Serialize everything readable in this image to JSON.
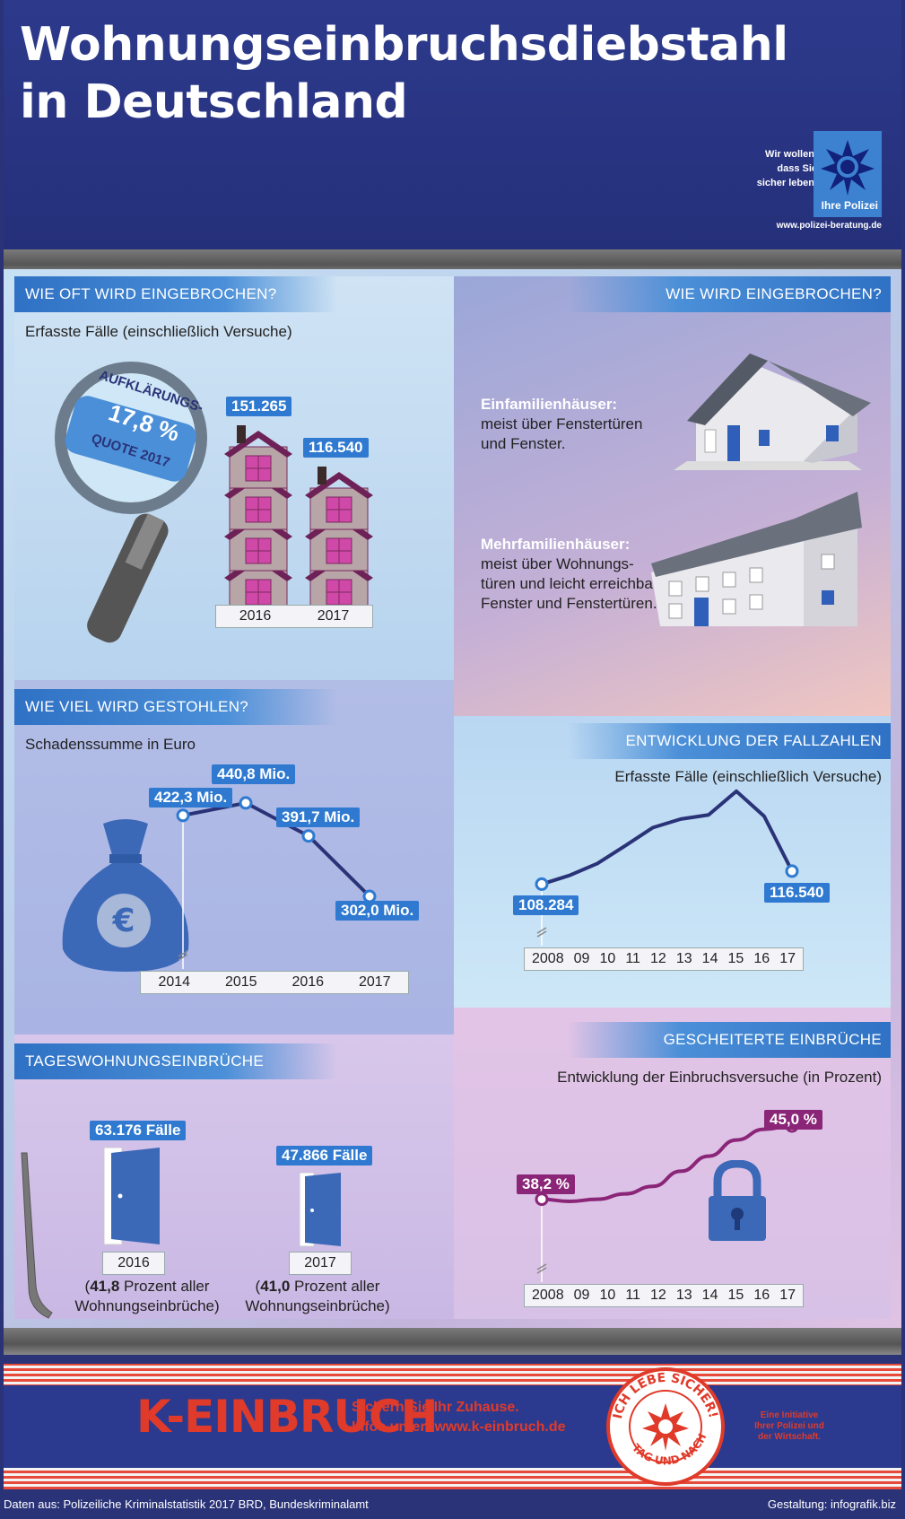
{
  "header": {
    "title_line1": "Wohnungseinbruchsdiebstahl",
    "title_line2": "in Deutschland",
    "police_slogan": [
      "Wir wollen,",
      "dass Sie",
      "sicher leben."
    ],
    "police_name": "Ihre Polizei",
    "police_url": "www.polizei-beratung.de"
  },
  "how_often": {
    "heading": "WIE OFT WIRD EINGEBROCHEN?",
    "subtitle": "Erfasste Fälle (einschließlich Versuche)",
    "magnifier": {
      "line1": "AUFKLÄRUNGS-",
      "line2": "17,8 %",
      "line3": "QUOTE 2017"
    },
    "chart_data": {
      "type": "bar",
      "categories": [
        "2016",
        "2017"
      ],
      "values": [
        151265,
        116540
      ],
      "labels": [
        "151.265",
        "116.540"
      ]
    }
  },
  "how": {
    "heading": "WIE WIRD EINGEBROCHEN?",
    "single_title": "Einfamilienhäuser:",
    "single_lines": [
      "meist über Fenstertüren",
      "und Fenster."
    ],
    "multi_title": "Mehrfamilienhäuser:",
    "multi_lines": [
      "meist über Wohnungs-",
      "türen und leicht erreichbare",
      "Fenster und Fenstertüren."
    ]
  },
  "stolen": {
    "heading": "WIE VIEL WIRD GESTOHLEN?",
    "subtitle": "Schadenssumme in Euro",
    "chart_data": {
      "type": "line",
      "x": [
        "2014",
        "2015",
        "2016",
        "2017"
      ],
      "values": [
        422.3,
        440.8,
        391.7,
        302.0
      ],
      "labels": [
        "422,3 Mio.",
        "440,8 Mio.",
        "391,7 Mio.",
        "302,0 Mio."
      ]
    }
  },
  "development": {
    "heading": "ENTWICKLUNG DER FALLZAHLEN",
    "subtitle": "Erfasste Fälle (einschließlich Versuche)",
    "chart_data": {
      "type": "line",
      "x": [
        "2008",
        "09",
        "10",
        "11",
        "12",
        "13",
        "14",
        "15",
        "16",
        "17"
      ],
      "values": [
        108284,
        113800,
        121347,
        132595,
        144117,
        149500,
        152123,
        167136,
        151265,
        116540
      ],
      "start_label": "108.284",
      "end_label": "116.540"
    }
  },
  "daytime": {
    "heading": "TAGESWOHNUNGSEINBRÜCHE",
    "items": [
      {
        "label": "63.176 Fälle",
        "year": "2016",
        "pct": "41,8",
        "text": "Prozent aller",
        "text2": "Wohnungseinbrüche)"
      },
      {
        "label": "47.866 Fälle",
        "year": "2017",
        "pct": "41,0",
        "text": "Prozent aller",
        "text2": "Wohnungseinbrüche)"
      }
    ]
  },
  "failed": {
    "heading": "GESCHEITERTE EINBRÜCHE",
    "subtitle": "Entwicklung der Einbruchsversuche (in Prozent)",
    "chart_data": {
      "type": "line",
      "x": [
        "2008",
        "09",
        "10",
        "11",
        "12",
        "13",
        "14",
        "15",
        "16",
        "17"
      ],
      "values": [
        38.2,
        38.0,
        38.2,
        38.7,
        39.4,
        40.8,
        42.2,
        43.7,
        44.7,
        45.0
      ],
      "start_label": "38,2 %",
      "end_label": "45,0 %"
    }
  },
  "footer": {
    "brand": "K-EINBRUCH",
    "line1": "Sichern Sie Ihr Zuhause.",
    "line2": "Infos unter: www.k-einbruch.de",
    "seal_top": "ICH LEBE SICHER!",
    "seal_bottom": "TAG UND NACHT!",
    "initiative": [
      "Eine Initiative",
      "Ihrer Polizei und",
      "der Wirtschaft."
    ],
    "source": "Daten aus: Polizeiliche Kriminalstatistik 2017 BRD, Bundeskriminalamt",
    "design": "Gestaltung: infografik.biz"
  },
  "colors": {
    "blue": "#2f7ad0",
    "navy": "#2b3a8e",
    "purple": "#8a2577",
    "red": "#e03a2a",
    "line": "#2a3378"
  }
}
